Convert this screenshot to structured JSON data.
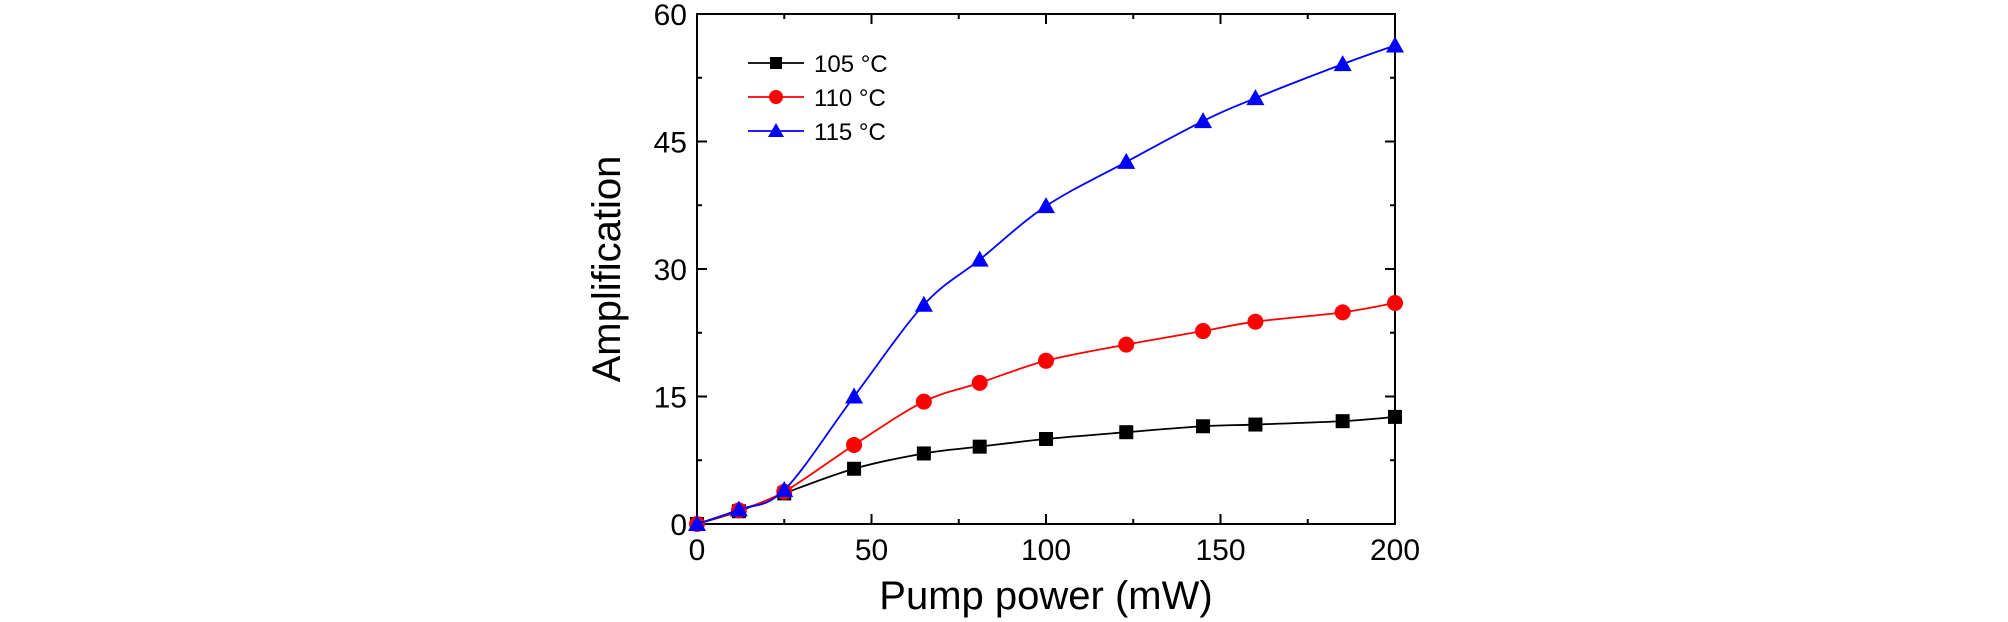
{
  "chart_data": {
    "type": "line",
    "title": "",
    "xlabel": "Pump power (mW)",
    "ylabel": "Amplification",
    "xlim": [
      0,
      200
    ],
    "ylim": [
      0,
      60
    ],
    "xticks": [
      0,
      50,
      100,
      150,
      200
    ],
    "yticks": [
      0,
      15,
      30,
      45,
      60
    ],
    "x_tick_labels": [
      "0",
      "50",
      "100",
      "150",
      "200"
    ],
    "y_tick_labels": [
      "0",
      "15",
      "30",
      "45",
      "60"
    ],
    "grid": false,
    "legend_position": "top-left",
    "series": [
      {
        "name": "105 °C",
        "color": "#000000",
        "marker": "square",
        "x": [
          0,
          12,
          25,
          45,
          65,
          81,
          100,
          123,
          145,
          160,
          185,
          200
        ],
        "y": [
          0,
          1.5,
          3.6,
          6.5,
          8.3,
          9.1,
          10.0,
          10.8,
          11.5,
          11.7,
          12.1,
          12.6
        ]
      },
      {
        "name": "110 °C",
        "color": "#ff0000",
        "marker": "circle",
        "x": [
          0,
          12,
          25,
          45,
          65,
          81,
          100,
          123,
          145,
          160,
          185,
          200
        ],
        "y": [
          0,
          1.6,
          3.8,
          9.3,
          14.4,
          16.6,
          19.2,
          21.1,
          22.7,
          23.8,
          24.9,
          26.0
        ]
      },
      {
        "name": "115 °C",
        "color": "#0000ff",
        "marker": "triangle",
        "x": [
          0,
          12,
          25,
          45,
          65,
          81,
          100,
          123,
          145,
          160,
          185,
          200
        ],
        "y": [
          0,
          1.7,
          4.0,
          15.0,
          25.8,
          31.1,
          37.4,
          42.6,
          47.4,
          50.1,
          54.1,
          56.3
        ]
      }
    ]
  }
}
